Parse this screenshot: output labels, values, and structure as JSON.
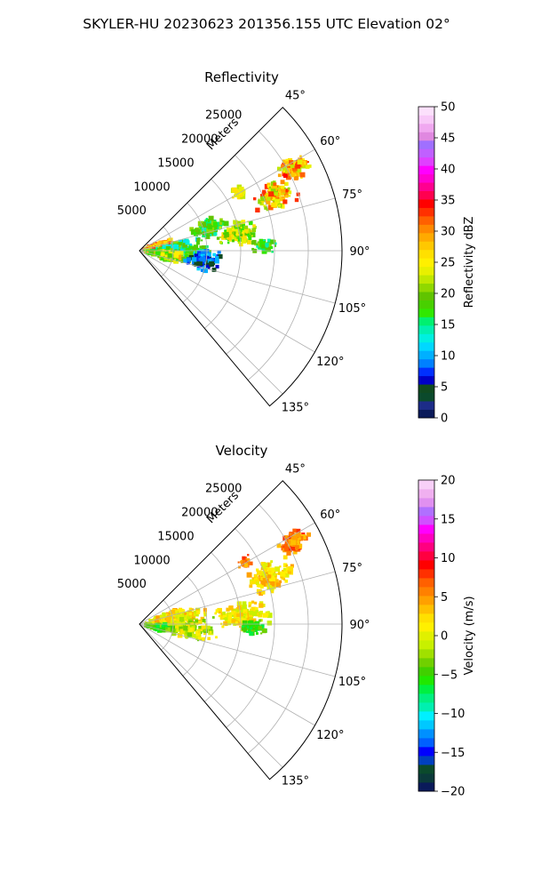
{
  "figure": {
    "suptitle": "SKYLER-HU  20230623  201356.155 UTC Elevation 02°"
  },
  "chart_data": [
    {
      "type": "polar",
      "title": "Reflectivity",
      "r_label": "Meters",
      "r_ticks": [
        "5000",
        "10000",
        "15000",
        "20000",
        "25000"
      ],
      "angle_ticks": [
        "45°",
        "60°",
        "75°",
        "90°",
        "105°",
        "120°",
        "135°"
      ],
      "r_range": [
        0,
        30000
      ],
      "angle_range": [
        45,
        140
      ],
      "grid": true,
      "colorbar": {
        "label": "Reflectivity dBZ",
        "range": [
          0,
          50
        ],
        "ticks": [
          "0",
          "5",
          "10",
          "15",
          "20",
          "25",
          "30",
          "35",
          "40",
          "45",
          "50"
        ],
        "colors": [
          "#0a1a5a",
          "#1c2c88",
          "#0b4a2c",
          "#104a20",
          "#0000c8",
          "#0030ff",
          "#0080ff",
          "#00b0ff",
          "#00d8ff",
          "#00f0e0",
          "#00f0b0",
          "#00f070",
          "#30e800",
          "#48d000",
          "#60c400",
          "#90d800",
          "#c0e800",
          "#e8f000",
          "#fff000",
          "#ffe000",
          "#ffc800",
          "#ffaa00",
          "#ff8800",
          "#ff6000",
          "#ff3000",
          "#ff0000",
          "#ff0050",
          "#ff0090",
          "#ff00d0",
          "#ff00ff",
          "#e040ff",
          "#c060ff",
          "#a070ff",
          "#e088e0",
          "#f0a8f0",
          "#f8c8f8",
          "#fce0fc"
        ]
      }
    },
    {
      "type": "polar",
      "title": "Velocity",
      "r_label": "Meters",
      "r_ticks": [
        "5000",
        "10000",
        "15000",
        "20000",
        "25000"
      ],
      "angle_ticks": [
        "45°",
        "60°",
        "75°",
        "90°",
        "105°",
        "120°",
        "135°"
      ],
      "r_range": [
        0,
        30000
      ],
      "angle_range": [
        45,
        140
      ],
      "grid": true,
      "colorbar": {
        "label": "Velocity (m/s)",
        "range": [
          -20,
          20
        ],
        "ticks": [
          "−20",
          "−15",
          "−10",
          "−5",
          "0",
          "5",
          "10",
          "15",
          "20"
        ],
        "colors": [
          "#0a1a5a",
          "#0b3a3a",
          "#0b4a2c",
          "#0040c0",
          "#0000ff",
          "#0060ff",
          "#0090ff",
          "#00c8ff",
          "#00f0ff",
          "#00f0b0",
          "#00f080",
          "#00f040",
          "#20e800",
          "#40d000",
          "#70d000",
          "#a0e000",
          "#c8f000",
          "#e0f000",
          "#fff000",
          "#ffe000",
          "#ffc000",
          "#ffa000",
          "#ff8000",
          "#ff6000",
          "#ff3000",
          "#ff0000",
          "#ff0040",
          "#ff0080",
          "#ff00c0",
          "#ff00ff",
          "#d050ff",
          "#b070ff",
          "#e090f0",
          "#f0b0f0",
          "#f8d0f8"
        ]
      }
    }
  ]
}
